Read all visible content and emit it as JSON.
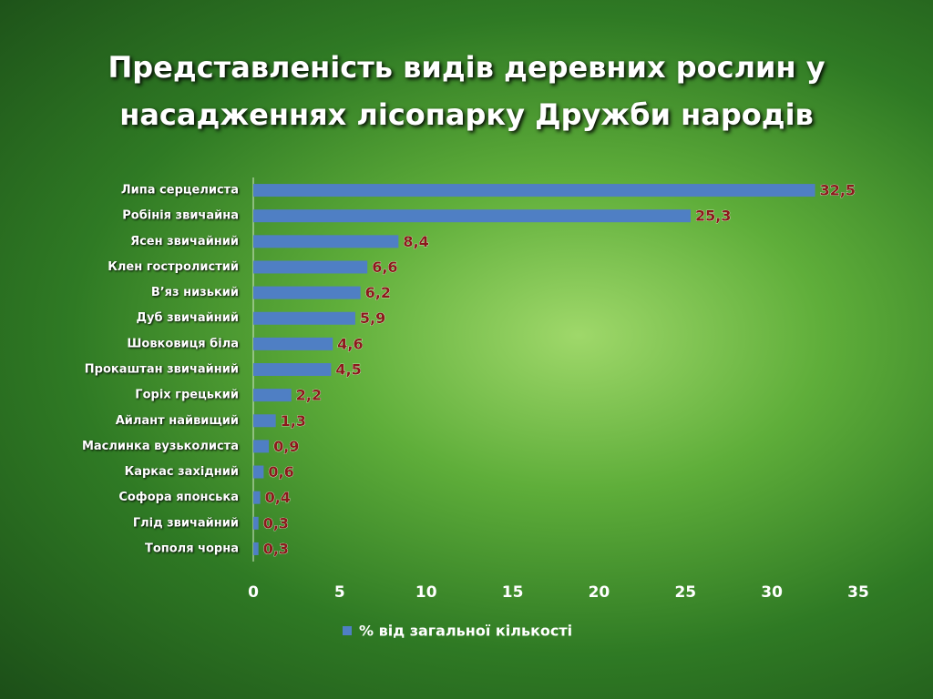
{
  "chart_data": {
    "type": "bar",
    "orientation": "horizontal",
    "title": "Представленість видів деревних рослин у насадженнях лісопарку Дружби народів",
    "categories": [
      "Липа серцелиста",
      "Робінія звичайна",
      "Ясен звичайний",
      "Клен гостролистий",
      "В’яз низький",
      "Дуб звичайний",
      "Шовковиця біла",
      "Прокаштан звичайний",
      "Горіх грецький",
      "Айлант найвищий",
      "Маслинка вузьколиста",
      "Каркас західний",
      "Софора японська",
      "Глід звичайний",
      "Тополя чорна"
    ],
    "series": [
      {
        "name": "% від загальної кількості",
        "color": "#4f7fc4",
        "values": [
          32.5,
          25.3,
          8.4,
          6.6,
          6.2,
          5.9,
          4.6,
          4.5,
          2.2,
          1.3,
          0.9,
          0.6,
          0.4,
          0.3,
          0.3
        ],
        "value_labels": [
          "32,5",
          "25,3",
          "8,4",
          "6,6",
          "6,2",
          "5,9",
          "4,6",
          "4,5",
          "2,2",
          "1,3",
          "0,9",
          "0,6",
          "0,4",
          "0,3",
          "0,3"
        ]
      }
    ],
    "xlim": [
      0,
      35
    ],
    "xticks": [
      0,
      5,
      10,
      15,
      20,
      25,
      30,
      35
    ],
    "legend": "bottom",
    "grid": false
  }
}
